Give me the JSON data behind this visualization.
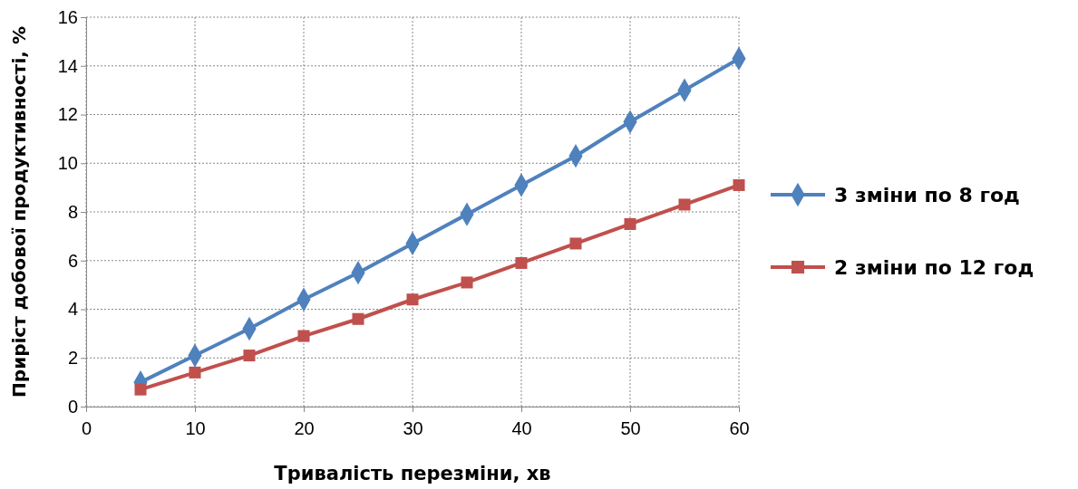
{
  "chart_data": {
    "type": "line",
    "xlabel": "Тривалість перезміни, хв",
    "ylabel": "Приріст добової продуктивності, %",
    "x": [
      5,
      10,
      15,
      20,
      25,
      30,
      35,
      40,
      45,
      50,
      55,
      60
    ],
    "series": [
      {
        "name": "3 зміни по 8 год",
        "color": "#4f81bd",
        "marker": "diamond",
        "values": [
          1.0,
          2.1,
          3.2,
          4.4,
          5.5,
          6.7,
          7.9,
          9.1,
          10.3,
          11.7,
          13.0,
          14.3
        ]
      },
      {
        "name": "2 зміни по 12 год",
        "color": "#c0504d",
        "marker": "square",
        "values": [
          0.7,
          1.4,
          2.1,
          2.9,
          3.6,
          4.4,
          5.1,
          5.9,
          6.7,
          7.5,
          8.3,
          9.1
        ]
      }
    ],
    "xlim": [
      0,
      60
    ],
    "xticks": [
      0,
      10,
      20,
      30,
      40,
      50,
      60
    ],
    "ylim": [
      0,
      16
    ],
    "yticks": [
      0,
      2,
      4,
      6,
      8,
      10,
      12,
      14,
      16
    ],
    "grid": true,
    "legend": "right",
    "line_style": "solid"
  }
}
